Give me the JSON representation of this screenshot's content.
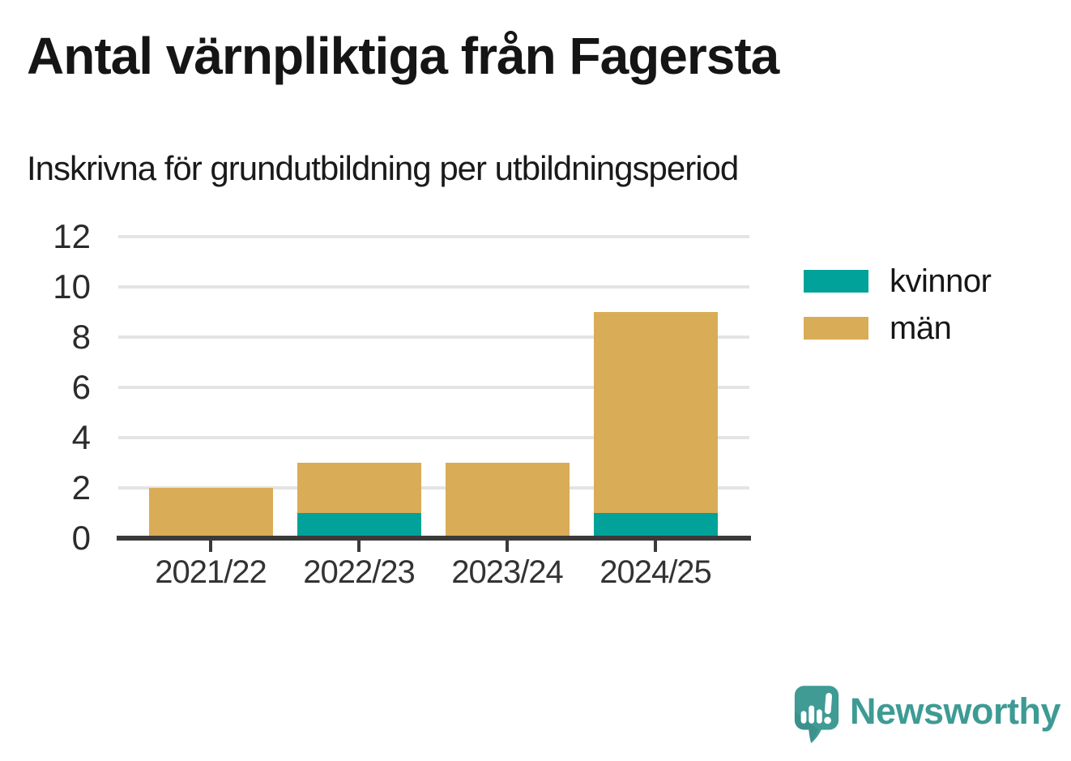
{
  "header": {
    "title": "Antal värnpliktiga från Fagersta",
    "subtitle": "Inskrivna för grundutbildning per utbildningsperiod"
  },
  "chart_data": {
    "type": "bar",
    "stacked": true,
    "categories": [
      "2021/22",
      "2022/23",
      "2023/24",
      "2024/25"
    ],
    "series": [
      {
        "name": "kvinnor",
        "color": "#00a29a",
        "values": [
          0,
          1,
          0,
          1
        ]
      },
      {
        "name": "män",
        "color": "#d9ac57",
        "values": [
          2,
          2,
          3,
          8
        ]
      }
    ],
    "totals": [
      2,
      3,
      3,
      9
    ],
    "yticks": [
      0,
      2,
      4,
      6,
      8,
      10,
      12
    ],
    "ylim": [
      0,
      12
    ],
    "xlabel": "",
    "ylabel": "",
    "grid": true,
    "grid_color": "#e4e4e4",
    "axis_color": "#3a3a3a",
    "legend_position": "right"
  },
  "footer": {
    "brand": "Newsworthy",
    "brand_color": "#3e9b94"
  }
}
